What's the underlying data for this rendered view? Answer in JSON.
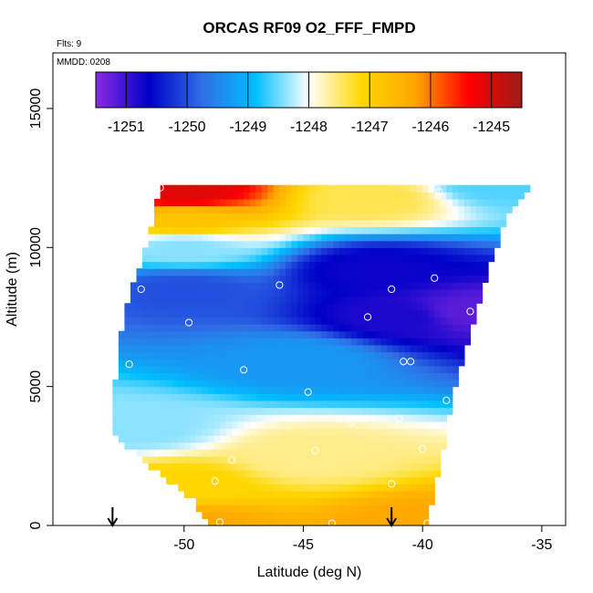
{
  "title": "ORCAS RF09 O2_FFF_FMPD",
  "flts_note": "Flts: 9",
  "mmdd_note": "MMDD: 0208",
  "chart_data": {
    "type": "heatmap",
    "title": "ORCAS RF09 O2_FFF_FMPD",
    "xlabel": "Latitude (deg N)",
    "ylabel": "Altitude (m)",
    "xlim": [
      -55.5,
      -34
    ],
    "ylim": [
      0,
      17000
    ],
    "x_ticks": [
      -50,
      -45,
      -40,
      -35
    ],
    "y_ticks": [
      0,
      5000,
      10000,
      15000
    ],
    "x_tick_labels": [
      "-50",
      "-45",
      "-40",
      "-35"
    ],
    "y_tick_labels": [
      "0",
      "5000",
      "10000",
      "15000"
    ],
    "grid": false,
    "colorbar": {
      "placement": "top-inside",
      "range": [
        -1251.5,
        -1244.5
      ],
      "ticks": [
        -1251,
        -1250,
        -1249,
        -1248,
        -1247,
        -1246,
        -1245
      ],
      "tick_labels": [
        "-1251",
        "-1250",
        "-1249",
        "-1248",
        "-1247",
        "-1246",
        "-1245"
      ],
      "colors": [
        "#8a2be2",
        "#0000c8",
        "#2f6fe6",
        "#00bfff",
        "#ffffff",
        "#ffd700",
        "#ffa500",
        "#ff0000",
        "#9e1a1a"
      ]
    },
    "domain_edges": {
      "left_boundary": [
        [
          -53.0,
          3300
        ],
        [
          -52.8,
          6500
        ],
        [
          -52.2,
          8500
        ],
        [
          -51.6,
          10000
        ],
        [
          -51.0,
          12200
        ]
      ],
      "right_boundary": [
        [
          -39.8,
          0
        ],
        [
          -39.2,
          2500
        ],
        [
          -38.5,
          5500
        ],
        [
          -37.5,
          8500
        ],
        [
          -36.5,
          11000
        ],
        [
          -35.0,
          12700
        ]
      ],
      "bottom_left": [
        [
          -53.0,
          3300
        ],
        [
          -51.5,
          2200
        ],
        [
          -49.5,
          800
        ],
        [
          -49.0,
          0
        ]
      ],
      "top_edge": [
        [
          -51.0,
          12200
        ],
        [
          -44.0,
          12200
        ],
        [
          -41.5,
          12400
        ],
        [
          -35.0,
          12700
        ]
      ]
    },
    "field_anchors": [
      {
        "lat": -50,
        "alt": 0,
        "value": -1246.3
      },
      {
        "lat": -40,
        "alt": 0,
        "value": -1246.3
      },
      {
        "lat": -50,
        "alt": 1500,
        "value": -1247.1
      },
      {
        "lat": -45,
        "alt": 2500,
        "value": -1247.6
      },
      {
        "lat": -52,
        "alt": 3500,
        "value": -1248.4
      },
      {
        "lat": -45,
        "alt": 6000,
        "value": -1249.3
      },
      {
        "lat": -50,
        "alt": 8500,
        "value": -1250.0
      },
      {
        "lat": -41,
        "alt": 7500,
        "value": -1250.8
      },
      {
        "lat": -38,
        "alt": 7700,
        "value": -1251.2
      },
      {
        "lat": -42,
        "alt": 9200,
        "value": -1250.7
      },
      {
        "lat": -50,
        "alt": 10000,
        "value": -1248.4
      },
      {
        "lat": -50,
        "alt": 11000,
        "value": -1246.8
      },
      {
        "lat": -50,
        "alt": 12000,
        "value": -1245.1
      },
      {
        "lat": -42,
        "alt": 11800,
        "value": -1247.4
      },
      {
        "lat": -37,
        "alt": 12300,
        "value": -1248.6
      }
    ],
    "sample_points": [
      {
        "lat": -51.0,
        "alt": 12150
      },
      {
        "lat": -36.5,
        "alt": 12600
      },
      {
        "lat": -35.5,
        "alt": 12650
      },
      {
        "lat": -35.0,
        "alt": 12650
      },
      {
        "lat": -39.3,
        "alt": 12000
      },
      {
        "lat": -51.8,
        "alt": 8500
      },
      {
        "lat": -46.0,
        "alt": 8650
      },
      {
        "lat": -41.3,
        "alt": 8500
      },
      {
        "lat": -39.5,
        "alt": 8900
      },
      {
        "lat": -38.0,
        "alt": 7700
      },
      {
        "lat": -49.8,
        "alt": 7300
      },
      {
        "lat": -42.3,
        "alt": 7500
      },
      {
        "lat": -52.3,
        "alt": 5800
      },
      {
        "lat": -47.5,
        "alt": 5600
      },
      {
        "lat": -40.8,
        "alt": 5900
      },
      {
        "lat": -40.5,
        "alt": 5900
      },
      {
        "lat": -44.8,
        "alt": 4800
      },
      {
        "lat": -39.0,
        "alt": 4500
      },
      {
        "lat": -43.0,
        "alt": 3700
      },
      {
        "lat": -41.0,
        "alt": 3850
      },
      {
        "lat": -49.0,
        "alt": 2850
      },
      {
        "lat": -44.5,
        "alt": 2700
      },
      {
        "lat": -40.0,
        "alt": 2750
      },
      {
        "lat": -48.0,
        "alt": 2350
      },
      {
        "lat": -48.7,
        "alt": 1600
      },
      {
        "lat": -41.3,
        "alt": 1500
      },
      {
        "lat": -48.5,
        "alt": 120
      },
      {
        "lat": -43.8,
        "alt": 80
      },
      {
        "lat": -39.8,
        "alt": 80
      }
    ],
    "markers": [
      {
        "type": "down-arrow",
        "lat": -53.0
      },
      {
        "type": "down-arrow",
        "lat": -41.3
      }
    ]
  }
}
